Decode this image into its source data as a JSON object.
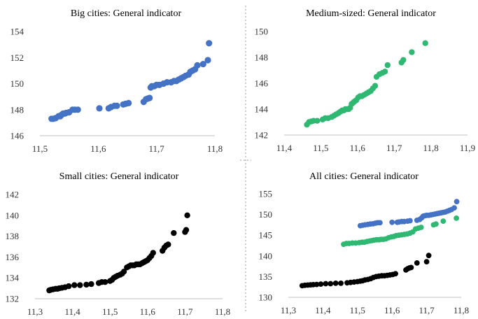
{
  "chart_data": [
    {
      "type": "scatter",
      "title": "Big cities: General indicator",
      "xlim": [
        11.5,
        11.8
      ],
      "xticks": [
        11.5,
        11.6,
        11.7,
        11.8
      ],
      "xtick_labels": [
        "11,5",
        "11,6",
        "11,7",
        "11,8"
      ],
      "ylim": [
        146,
        154
      ],
      "yticks": [
        146,
        148,
        150,
        152,
        154
      ],
      "ytick_labels": [
        "146",
        "148",
        "150",
        "152",
        "154"
      ],
      "grid": false,
      "series": [
        {
          "color": "#4472c4",
          "x": [
            11.52,
            11.523,
            11.527,
            11.532,
            11.535,
            11.537,
            11.54,
            11.543,
            11.545,
            11.55,
            11.556,
            11.56,
            11.565,
            11.602,
            11.618,
            11.622,
            11.628,
            11.632,
            11.643,
            11.647,
            11.652,
            11.678,
            11.682,
            11.685,
            11.688,
            11.69,
            11.692,
            11.696,
            11.7,
            11.705,
            11.712,
            11.718,
            11.725,
            11.73,
            11.734,
            11.738,
            11.742,
            11.746,
            11.75,
            11.755,
            11.758,
            11.762,
            11.766,
            11.77,
            11.78,
            11.788,
            11.79
          ],
          "y": [
            147.3,
            147.3,
            147.35,
            147.5,
            147.5,
            147.6,
            147.7,
            147.7,
            147.75,
            147.8,
            148.0,
            148.0,
            148.0,
            148.1,
            148.1,
            148.2,
            148.3,
            148.3,
            148.4,
            148.45,
            148.5,
            148.6,
            148.8,
            148.85,
            148.9,
            149.7,
            149.8,
            149.8,
            149.9,
            149.9,
            150.0,
            150.1,
            150.1,
            150.2,
            150.2,
            150.3,
            150.4,
            150.5,
            150.6,
            150.7,
            150.9,
            151.0,
            151.1,
            151.4,
            151.5,
            151.8,
            153.1
          ]
        }
      ]
    },
    {
      "type": "scatter",
      "title": "Medium-sized: General indicator",
      "xlim": [
        11.4,
        11.9
      ],
      "xticks": [
        11.4,
        11.5,
        11.6,
        11.7,
        11.8,
        11.9
      ],
      "xtick_labels": [
        "11,4",
        "11,5",
        "11,6",
        "11,7",
        "11,8",
        "11,9"
      ],
      "ylim": [
        142,
        150
      ],
      "yticks": [
        142,
        144,
        146,
        148,
        150
      ],
      "ytick_labels": [
        "142",
        "144",
        "146",
        "148",
        "150"
      ],
      "grid": false,
      "series": [
        {
          "color": "#2eb872",
          "x": [
            11.462,
            11.468,
            11.474,
            11.48,
            11.49,
            11.505,
            11.512,
            11.52,
            11.53,
            11.536,
            11.542,
            11.548,
            11.553,
            11.558,
            11.563,
            11.567,
            11.572,
            11.576,
            11.58,
            11.584,
            11.588,
            11.592,
            11.597,
            11.602,
            11.607,
            11.612,
            11.618,
            11.624,
            11.63,
            11.636,
            11.642,
            11.648,
            11.652,
            11.66,
            11.668,
            11.675,
            11.682,
            11.72,
            11.725,
            11.748,
            11.785
          ],
          "y": [
            142.8,
            143.0,
            143.05,
            143.1,
            143.1,
            143.2,
            143.3,
            143.3,
            143.4,
            143.5,
            143.6,
            143.7,
            143.8,
            143.9,
            143.9,
            144.0,
            144.0,
            144.0,
            144.1,
            144.4,
            144.5,
            144.6,
            144.7,
            144.9,
            145.0,
            145.0,
            145.1,
            145.2,
            145.3,
            145.4,
            145.6,
            145.8,
            146.5,
            146.7,
            146.8,
            146.9,
            147.4,
            147.6,
            147.8,
            148.4,
            149.1
          ]
        }
      ]
    },
    {
      "type": "scatter",
      "title": "Small cities: General indicator",
      "xlim": [
        11.3,
        11.8
      ],
      "xticks": [
        11.3,
        11.4,
        11.5,
        11.6,
        11.7,
        11.8
      ],
      "xtick_labels": [
        "11,3",
        "11,4",
        "11,5",
        "11,6",
        "11,7",
        "11,8"
      ],
      "ylim": [
        132,
        142
      ],
      "yticks": [
        132,
        134,
        136,
        138,
        140,
        142
      ],
      "ytick_labels": [
        "132",
        "134",
        "136",
        "138",
        "140",
        "142"
      ],
      "grid": false,
      "series": [
        {
          "color": "#000000",
          "x": [
            11.338,
            11.342,
            11.348,
            11.355,
            11.36,
            11.365,
            11.372,
            11.38,
            11.39,
            11.405,
            11.42,
            11.437,
            11.45,
            11.47,
            11.478,
            11.487,
            11.5,
            11.505,
            11.51,
            11.515,
            11.52,
            11.527,
            11.532,
            11.537,
            11.545,
            11.55,
            11.555,
            11.56,
            11.565,
            11.57,
            11.575,
            11.58,
            11.585,
            11.59,
            11.595,
            11.6,
            11.605,
            11.61,
            11.615,
            11.64,
            11.645,
            11.65,
            11.655,
            11.67,
            11.7,
            11.703,
            11.706
          ],
          "y": [
            132.8,
            132.85,
            132.9,
            132.95,
            132.95,
            133.0,
            133.05,
            133.1,
            133.2,
            133.3,
            133.3,
            133.35,
            133.4,
            133.5,
            133.6,
            133.6,
            133.7,
            133.8,
            134.0,
            134.1,
            134.2,
            134.3,
            134.4,
            134.6,
            135.0,
            135.1,
            135.2,
            135.2,
            135.2,
            135.3,
            135.3,
            135.3,
            135.4,
            135.5,
            135.6,
            135.7,
            135.9,
            136.1,
            136.4,
            136.6,
            136.9,
            137.1,
            137.2,
            138.3,
            138.4,
            138.6,
            140.0
          ]
        }
      ]
    },
    {
      "type": "scatter",
      "title": "All cities: General indicator",
      "xlim": [
        11.3,
        11.8
      ],
      "xticks": [
        11.3,
        11.4,
        11.5,
        11.6,
        11.7,
        11.8
      ],
      "xtick_labels": [
        "11,3",
        "11,4",
        "11,5",
        "11,6",
        "11,7",
        "11,8"
      ],
      "ylim": [
        130,
        155
      ],
      "yticks": [
        130,
        135,
        140,
        145,
        150,
        155
      ],
      "ytick_labels": [
        "130",
        "135",
        "140",
        "145",
        "150",
        "155"
      ],
      "grid": false,
      "series": [
        {
          "color": "#4472c4",
          "x": [
            11.508,
            11.515,
            11.522,
            11.53,
            11.537,
            11.545,
            11.552,
            11.558,
            11.565,
            11.6,
            11.615,
            11.62,
            11.628,
            11.635,
            11.645,
            11.652,
            11.672,
            11.68,
            11.686,
            11.69,
            11.695,
            11.7,
            11.706,
            11.712,
            11.718,
            11.724,
            11.73,
            11.736,
            11.742,
            11.748,
            11.754,
            11.76,
            11.766,
            11.772,
            11.78,
            11.787
          ],
          "y": [
            147.3,
            147.4,
            147.5,
            147.6,
            147.7,
            147.75,
            147.9,
            148.0,
            148.0,
            148.1,
            148.1,
            148.2,
            148.3,
            148.3,
            148.4,
            148.5,
            148.6,
            148.8,
            149.2,
            149.6,
            149.7,
            149.8,
            149.8,
            149.9,
            150.0,
            150.1,
            150.2,
            150.3,
            150.4,
            150.5,
            150.6,
            150.8,
            151.0,
            151.2,
            151.6,
            153.1
          ]
        },
        {
          "color": "#2eb872",
          "x": [
            11.46,
            11.468,
            11.476,
            11.485,
            11.495,
            11.505,
            11.513,
            11.52,
            11.528,
            11.535,
            11.542,
            11.548,
            11.555,
            11.562,
            11.568,
            11.575,
            11.582,
            11.59,
            11.598,
            11.605,
            11.612,
            11.62,
            11.628,
            11.636,
            11.644,
            11.652,
            11.66,
            11.668,
            11.676,
            11.684,
            11.72,
            11.727,
            11.748,
            11.786
          ],
          "y": [
            142.8,
            143.0,
            143.0,
            143.1,
            143.1,
            143.2,
            143.3,
            143.3,
            143.5,
            143.6,
            143.7,
            143.8,
            143.9,
            143.9,
            144.0,
            144.0,
            144.1,
            144.4,
            144.6,
            144.7,
            144.9,
            145.0,
            145.1,
            145.2,
            145.3,
            145.5,
            145.8,
            146.5,
            146.7,
            146.9,
            147.5,
            147.7,
            148.4,
            149.1
          ]
        },
        {
          "color": "#000000",
          "x": [
            11.34,
            11.348,
            11.356,
            11.364,
            11.372,
            11.382,
            11.394,
            11.408,
            11.422,
            11.437,
            11.452,
            11.47,
            11.48,
            11.49,
            11.5,
            11.508,
            11.515,
            11.522,
            11.53,
            11.538,
            11.546,
            11.554,
            11.562,
            11.57,
            11.578,
            11.586,
            11.594,
            11.602,
            11.61,
            11.64,
            11.645,
            11.65,
            11.655,
            11.672,
            11.7,
            11.706
          ],
          "y": [
            132.8,
            132.9,
            132.95,
            133.0,
            133.05,
            133.1,
            133.2,
            133.3,
            133.3,
            133.4,
            133.4,
            133.5,
            133.6,
            133.7,
            133.8,
            133.9,
            134.0,
            134.2,
            134.3,
            134.5,
            134.8,
            135.0,
            135.1,
            135.2,
            135.2,
            135.3,
            135.4,
            135.5,
            135.7,
            136.6,
            136.9,
            137.1,
            137.2,
            138.3,
            138.6,
            140.1
          ]
        }
      ]
    }
  ]
}
